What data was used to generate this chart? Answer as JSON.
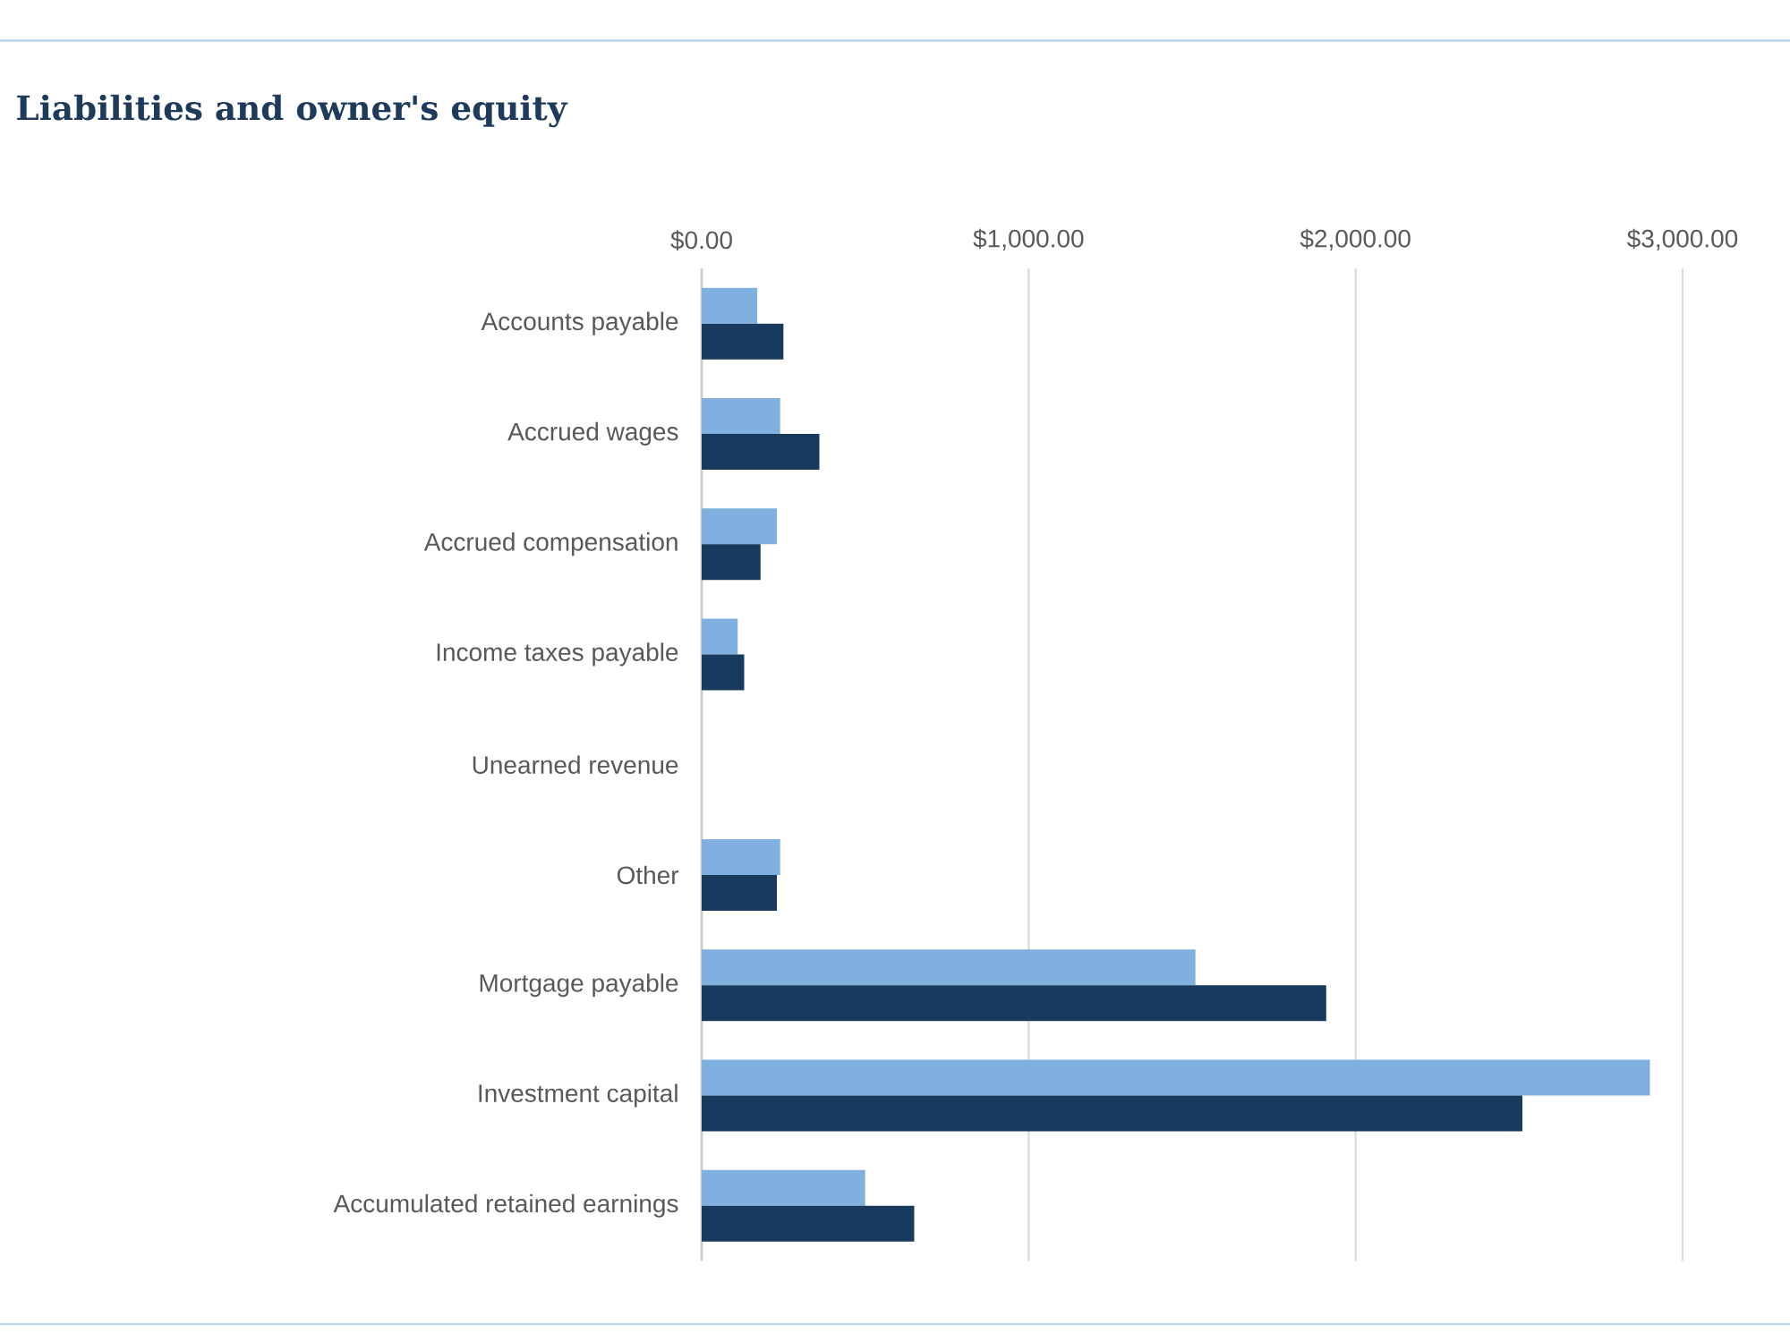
{
  "chart_data": {
    "type": "bar",
    "orientation": "horizontal",
    "title": "Liabilities and owner's equity",
    "categories": [
      "Accounts payable",
      "Accrued wages",
      "Accrued compensation",
      "Income taxes payable",
      "Unearned revenue",
      "Other",
      "Mortgage payable",
      "Investment capital",
      "Accumulated retained earnings"
    ],
    "series": [
      {
        "color": "#7fb0e0",
        "values": [
          170,
          240,
          230,
          110,
          0,
          240,
          1510,
          2900,
          500
        ]
      },
      {
        "color": "#173a5e",
        "values": [
          250,
          360,
          180,
          130,
          0,
          230,
          1910,
          2510,
          650
        ]
      }
    ],
    "xlim": [
      0,
      3000
    ],
    "xticks": [
      {
        "value": 0,
        "label": "$0.00"
      },
      {
        "value": 1000,
        "label": "$1,000.00"
      },
      {
        "value": 2000,
        "label": "$2,000.00"
      },
      {
        "value": 3000,
        "label": "$3,000.00"
      }
    ],
    "grid": "x"
  }
}
